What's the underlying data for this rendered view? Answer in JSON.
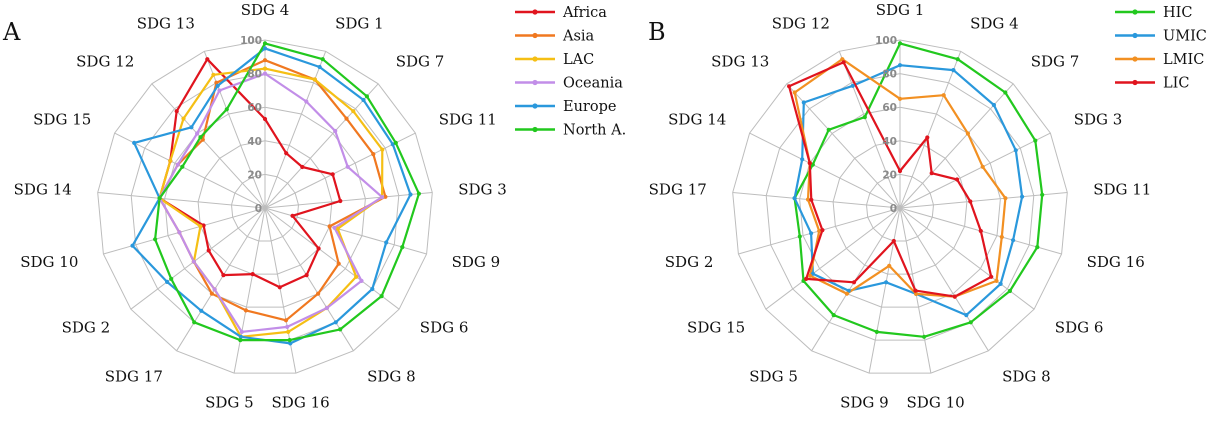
{
  "chart_data": [
    {
      "type": "radar",
      "panel": "A",
      "axes": [
        "SDG 4",
        "SDG 1",
        "SDG 7",
        "SDG 11",
        "SDG 3",
        "SDG 9",
        "SDG 6",
        "SDG 8",
        "SDG 16",
        "SDG 5",
        "SDG 17",
        "SDG 2",
        "SDG 10",
        "SDG 14",
        "SDG 15",
        "SDG 12",
        "SDG 13"
      ],
      "rlim": [
        0,
        100
      ],
      "ticks": [
        0,
        20,
        40,
        60,
        80,
        100
      ],
      "legend_position": "top-right",
      "series": [
        {
          "name": "Africa",
          "color": "#e0141e",
          "values": [
            53,
            35,
            33,
            45,
            45,
            17,
            40,
            47,
            48,
            40,
            47,
            42,
            38,
            63,
            63,
            78,
            95
          ]
        },
        {
          "name": "Asia",
          "color": "#f07820",
          "values": [
            88,
            82,
            72,
            72,
            72,
            40,
            55,
            60,
            68,
            62,
            60,
            53,
            53,
            63,
            58,
            55,
            80
          ]
        },
        {
          "name": "LAC",
          "color": "#f5bf14",
          "values": [
            83,
            82,
            78,
            78,
            70,
            45,
            68,
            70,
            75,
            78,
            57,
            53,
            40,
            63,
            63,
            72,
            85
          ]
        },
        {
          "name": "Oceania",
          "color": "#c28ee8",
          "values": [
            80,
            68,
            62,
            55,
            70,
            43,
            72,
            70,
            72,
            75,
            57,
            53,
            53,
            63,
            58,
            60,
            75
          ]
        },
        {
          "name": "Europe",
          "color": "#2a98dc",
          "values": [
            95,
            90,
            87,
            85,
            87,
            75,
            80,
            80,
            82,
            78,
            72,
            73,
            82,
            63,
            87,
            65,
            78
          ]
        },
        {
          "name": "North A.",
          "color": "#22c81e",
          "values": [
            98,
            95,
            90,
            87,
            92,
            85,
            87,
            85,
            80,
            80,
            80,
            70,
            68,
            63,
            55,
            57,
            63
          ]
        }
      ]
    },
    {
      "type": "radar",
      "panel": "B",
      "axes": [
        "SDG 1",
        "SDG 4",
        "SDG 7",
        "SDG 3",
        "SDG 11",
        "SDG 16",
        "SDG 6",
        "SDG 8",
        "SDG 10",
        "SDG 9",
        "SDG 5",
        "SDG 15",
        "SDG 2",
        "SDG 17",
        "SDG 14",
        "SDG 13",
        "SDG 12"
      ],
      "rlim": [
        0,
        100
      ],
      "ticks": [
        0,
        20,
        40,
        60,
        80,
        100
      ],
      "legend_position": "top-right",
      "series": [
        {
          "name": "HIC",
          "color": "#22c81e",
          "values": [
            98,
            95,
            93,
            90,
            85,
            85,
            82,
            80,
            78,
            75,
            75,
            72,
            62,
            63,
            58,
            63,
            58
          ]
        },
        {
          "name": "UMIC",
          "color": "#2a98dc",
          "values": [
            85,
            88,
            83,
            77,
            73,
            70,
            75,
            75,
            52,
            45,
            58,
            65,
            55,
            63,
            65,
            85,
            78
          ]
        },
        {
          "name": "LMIC",
          "color": "#f29022",
          "values": [
            65,
            72,
            60,
            55,
            63,
            63,
            72,
            62,
            52,
            35,
            60,
            67,
            50,
            55,
            60,
            93,
            95
          ]
        },
        {
          "name": "LIC",
          "color": "#e0141e",
          "values": [
            22,
            45,
            28,
            38,
            42,
            50,
            68,
            62,
            50,
            20,
            52,
            70,
            48,
            53,
            60,
            98,
            93
          ]
        }
      ]
    }
  ]
}
